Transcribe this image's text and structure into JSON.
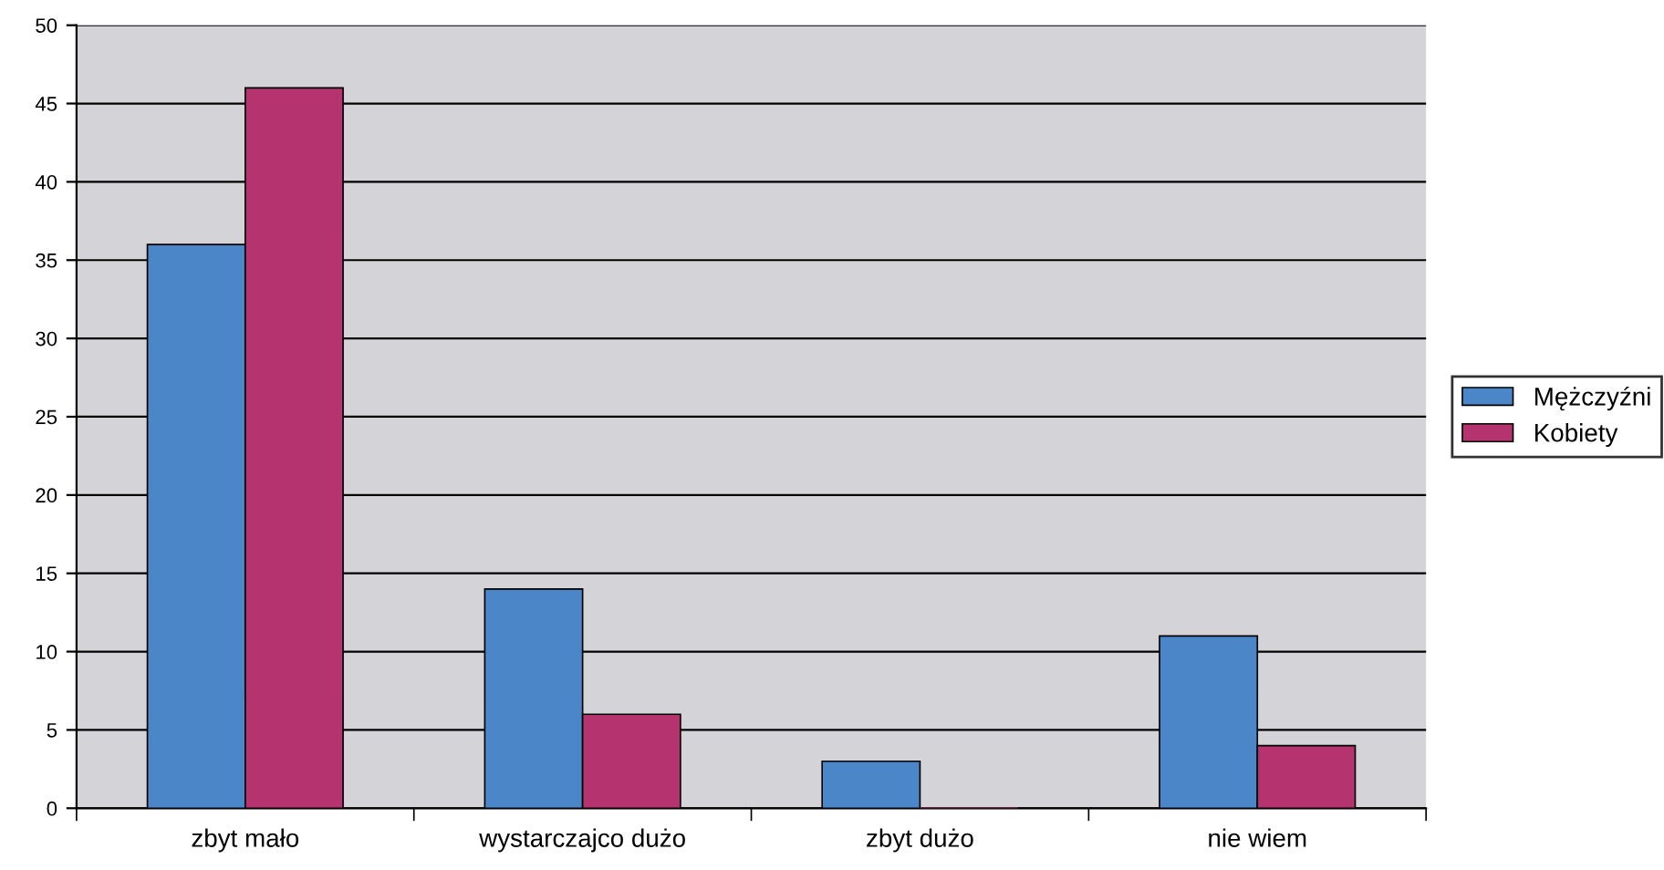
{
  "chart_data": {
    "type": "bar",
    "categories": [
      "zbyt mało",
      "wystarczajco dużo",
      "zbyt dużo",
      "nie wiem"
    ],
    "series": [
      {
        "name": "Mężczyźni",
        "color": "#4a86c8",
        "values": [
          36,
          14,
          3,
          11
        ]
      },
      {
        "name": "Kobiety",
        "color": "#b5346f",
        "values": [
          46,
          6,
          0,
          4
        ]
      }
    ],
    "ylim": [
      0,
      50
    ],
    "yticks": [
      0,
      5,
      10,
      15,
      20,
      25,
      30,
      35,
      40,
      45,
      50
    ],
    "grid": "y",
    "legend": "right"
  }
}
